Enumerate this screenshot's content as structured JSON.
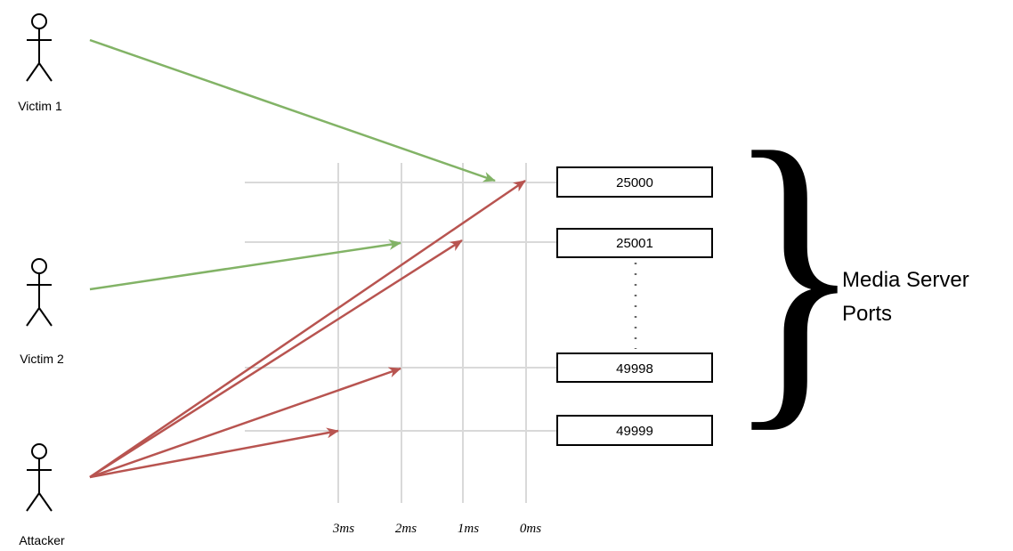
{
  "colors": {
    "victim_arrow": "#82b366",
    "attacker_arrow": "#b85450",
    "grid": "#d9d9d9",
    "ellipsis_dots": "#666666"
  },
  "actors": [
    {
      "id": "victim1",
      "label": "Victim 1",
      "icon": "person-icon"
    },
    {
      "id": "victim2",
      "label": "Victim 2",
      "icon": "person-icon"
    },
    {
      "id": "attacker",
      "label": "Attacker",
      "icon": "person-icon"
    }
  ],
  "time_labels": [
    "3ms",
    "2ms",
    "1ms",
    "0ms"
  ],
  "ports": [
    "25000",
    "25001",
    "49998",
    "49999"
  ],
  "server_label": {
    "line1": "Media Server",
    "line2": "Ports"
  },
  "brace_glyph": "}",
  "arrows": [
    {
      "from": "Victim 1",
      "to_port": "25000",
      "time": "1ms",
      "kind": "victim"
    },
    {
      "from": "Victim 2",
      "to_port": "25001",
      "time": "2ms",
      "kind": "victim"
    },
    {
      "from": "Attacker",
      "to_port": "25000",
      "time": "0ms",
      "kind": "attacker"
    },
    {
      "from": "Attacker",
      "to_port": "25001",
      "time": "1ms",
      "kind": "attacker"
    },
    {
      "from": "Attacker",
      "to_port": "49998",
      "time": "2ms",
      "kind": "attacker"
    },
    {
      "from": "Attacker",
      "to_port": "49999",
      "time": "3ms",
      "kind": "attacker"
    }
  ]
}
